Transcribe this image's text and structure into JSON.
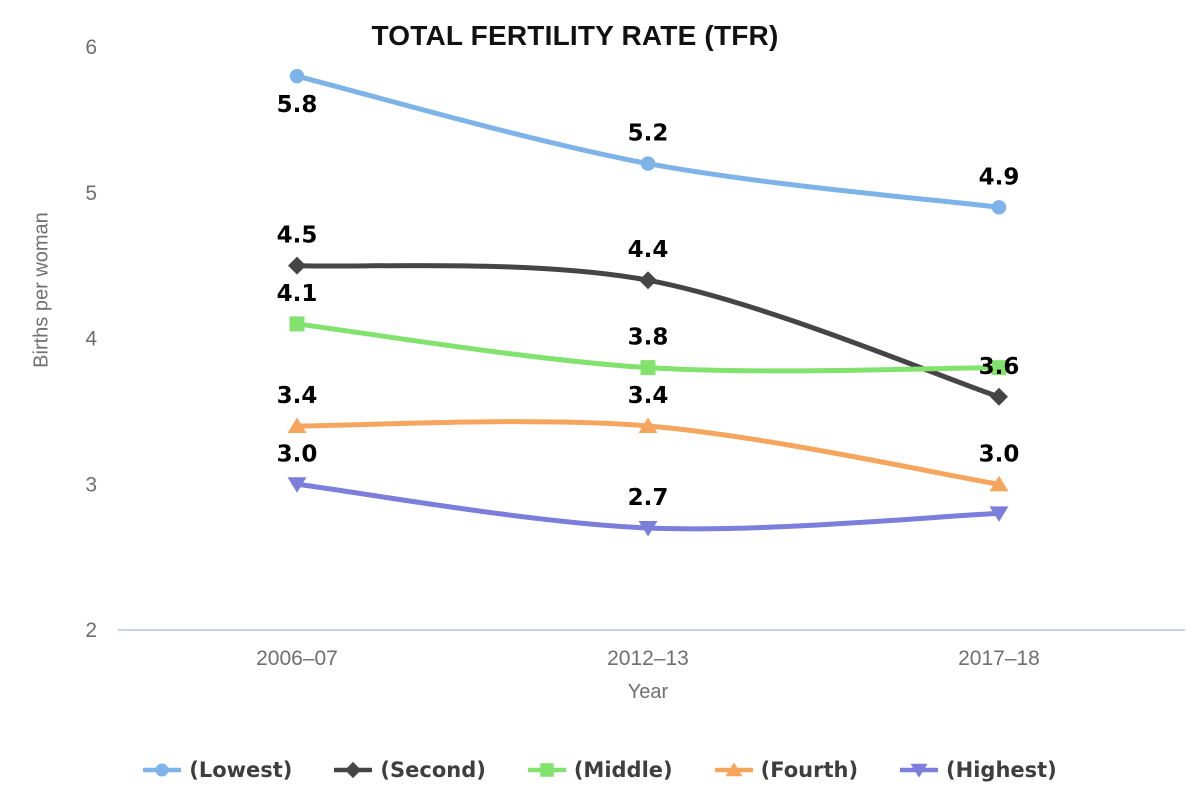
{
  "page": {
    "background": "#ffffff"
  },
  "chart_data": {
    "type": "line",
    "title": "TOTAL FERTILITY RATE (TFR)",
    "xlabel": "Year",
    "ylabel": "Births per woman",
    "categories": [
      "2006–07",
      "2012–13",
      "2017–18"
    ],
    "ylim": [
      2,
      6
    ],
    "yticks": [
      6,
      5,
      4,
      3,
      2
    ],
    "grid": false,
    "legend_position": "bottom",
    "axis_color": "#c9d3e4",
    "tick_color": "#6f6f6f",
    "data_label_color": "#000000",
    "legend_text_color": "#3e3e3e",
    "series": [
      {
        "name": "(Lowest)",
        "marker": "circle",
        "color": "#7db3e8",
        "values": [
          5.8,
          5.2,
          4.9
        ],
        "labels": [
          "5.8",
          "5.2",
          "4.9"
        ],
        "label_placement": [
          "below",
          "above",
          "above"
        ]
      },
      {
        "name": "(Second)",
        "marker": "diamond",
        "color": "#454545",
        "values": [
          4.5,
          4.4,
          3.6
        ],
        "labels": [
          "4.5",
          "4.4",
          "3.6"
        ],
        "label_placement": [
          "above",
          "above",
          "above"
        ]
      },
      {
        "name": "(Middle)",
        "marker": "square",
        "color": "#81e26e",
        "values": [
          4.1,
          3.8,
          3.8
        ],
        "labels": [
          "4.1",
          "3.8",
          null
        ],
        "label_placement": [
          "above",
          "above",
          "above"
        ]
      },
      {
        "name": "(Fourth)",
        "marker": "triangle-up",
        "color": "#f6a55f",
        "values": [
          3.4,
          3.4,
          3.0
        ],
        "labels": [
          "3.4",
          "3.4",
          "3.0"
        ],
        "label_placement": [
          "above",
          "above",
          "above"
        ]
      },
      {
        "name": "(Highest)",
        "marker": "triangle-down",
        "color": "#7b7edb",
        "values": [
          3.0,
          2.7,
          2.8
        ],
        "labels": [
          "3.0",
          "2.7",
          null
        ],
        "label_placement": [
          "above",
          "above",
          "above"
        ]
      }
    ]
  }
}
